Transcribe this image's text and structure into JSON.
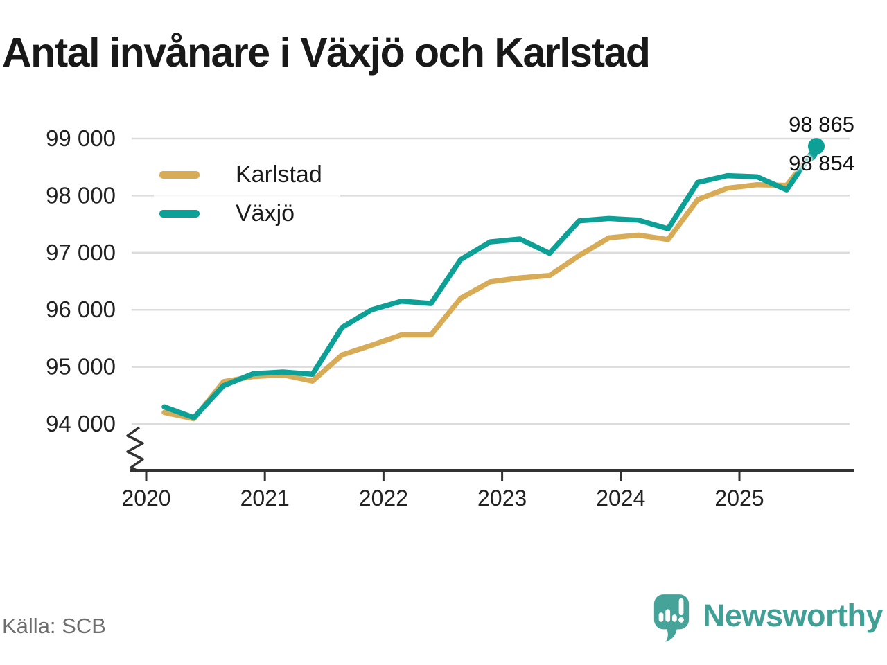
{
  "title": "Antal invånare i Växjö och Karlstad",
  "source": "Källa: SCB",
  "branding": {
    "logo_text": "Newsworthy",
    "logo_icon": "speech-bubble-bar-chart-icon",
    "color": "#41A096"
  },
  "legend": [
    {
      "label": "Karlstad",
      "color": "#D8AC57"
    },
    {
      "label": "Växjö",
      "color": "#0DA096"
    }
  ],
  "chart_data": {
    "type": "line",
    "title": "Antal invånare i Växjö och Karlstad",
    "x": [
      "2020 K1",
      "2020 K2",
      "2020 K3",
      "2020 K4",
      "2021 K1",
      "2021 K2",
      "2021 K3",
      "2021 K4",
      "2022 K1",
      "2022 K2",
      "2022 K3",
      "2022 K4",
      "2023 K1",
      "2023 K2",
      "2023 K3",
      "2023 K4",
      "2024 K1",
      "2024 K2",
      "2024 K3",
      "2024 K4",
      "2025 K1",
      "2025 K2",
      "2025 K3"
    ],
    "series": [
      {
        "name": "Karlstad",
        "color": "#D8AC57",
        "values": [
          94200,
          94090,
          94740,
          94830,
          94860,
          94750,
          95210,
          95380,
          95560,
          95560,
          96200,
          96490,
          96560,
          96600,
          96950,
          97260,
          97310,
          97230,
          97930,
          98130,
          98190,
          98180,
          98854
        ]
      },
      {
        "name": "Växjö",
        "color": "#0DA096",
        "values": [
          94300,
          94110,
          94670,
          94880,
          94910,
          94870,
          95690,
          96000,
          96150,
          96110,
          96880,
          97190,
          97240,
          96990,
          97560,
          97600,
          97570,
          97420,
          98230,
          98350,
          98330,
          98100,
          98865
        ]
      }
    ],
    "end_labels": {
      "vaxjo": "98 865",
      "karlstad": "98 854"
    },
    "y_axis": {
      "tick_values": [
        99000,
        98000,
        97000,
        96000,
        95000,
        94000
      ],
      "tick_labels": [
        "99 000",
        "98 000",
        "97 000",
        "96 000",
        "95 000",
        "94 000"
      ],
      "range_shown": [
        94000,
        99000
      ],
      "broken_axis": true
    },
    "x_axis": {
      "tick_values": [
        2020,
        2021,
        2022,
        2023,
        2024,
        2025
      ],
      "tick_labels": [
        "2020",
        "2021",
        "2022",
        "2023",
        "2024",
        "2025"
      ]
    },
    "grid": "horizontal",
    "legend_position": "top-left",
    "last_point_marker": "speech-bubble-dot"
  }
}
